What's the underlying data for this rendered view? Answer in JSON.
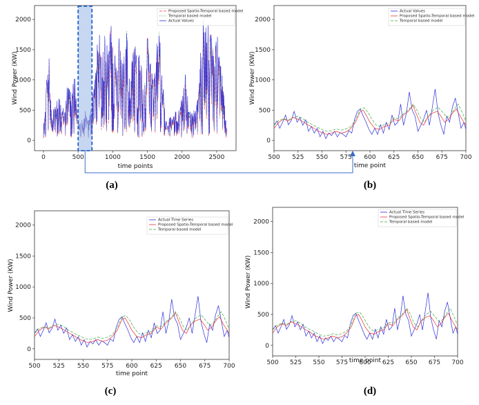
{
  "colors": {
    "actual": "#2b2bdc",
    "spatio": "#e83030",
    "temporal": "#3aa83a",
    "highlight": "#9bb7e6",
    "highlight_border": "#1f5fc8",
    "arrow": "#3a6bc9"
  },
  "chart_data": [
    {
      "id": "a",
      "type": "line",
      "panel_label": "(a)",
      "xlabel": "time points",
      "ylabel": "Wind Power (KW)",
      "xlim": [
        -130,
        2780
      ],
      "ylim": [
        -170,
        2230
      ],
      "xticks": [
        0,
        500,
        1000,
        1500,
        2000,
        2500
      ],
      "yticks": [
        0,
        500,
        1000,
        1500,
        2000
      ],
      "highlight_range": [
        500,
        700
      ],
      "legend_position": "top-right",
      "n_points": 2650,
      "series": [
        {
          "name": "Proposed Spatio-Temporal based model",
          "style": "dashed",
          "color_key": "spatio"
        },
        {
          "name": "Temporal based model",
          "style": "dotted",
          "color_key": "temporal"
        },
        {
          "name": "Actual Values",
          "style": "solid",
          "color_key": "actual"
        }
      ],
      "actual_envelope": [
        [
          0,
          200
        ],
        [
          40,
          900
        ],
        [
          80,
          1300
        ],
        [
          120,
          400
        ],
        [
          200,
          700
        ],
        [
          300,
          450
        ],
        [
          350,
          1000
        ],
        [
          400,
          700
        ],
        [
          450,
          1100
        ],
        [
          500,
          300
        ],
        [
          550,
          250
        ],
        [
          600,
          450
        ],
        [
          650,
          350
        ],
        [
          700,
          700
        ],
        [
          750,
          1100
        ],
        [
          800,
          1950
        ],
        [
          860,
          1600
        ],
        [
          920,
          1800
        ],
        [
          1000,
          1850
        ],
        [
          1050,
          1200
        ],
        [
          1100,
          1850
        ],
        [
          1150,
          1250
        ],
        [
          1200,
          1800
        ],
        [
          1250,
          900
        ],
        [
          1300,
          1700
        ],
        [
          1350,
          1450
        ],
        [
          1400,
          1650
        ],
        [
          1450,
          600
        ],
        [
          1500,
          1800
        ],
        [
          1550,
          1200
        ],
        [
          1600,
          1050
        ],
        [
          1660,
          2200
        ],
        [
          1700,
          1400
        ],
        [
          1760,
          250
        ],
        [
          1850,
          350
        ],
        [
          1950,
          450
        ],
        [
          2050,
          1100
        ],
        [
          2100,
          500
        ],
        [
          2150,
          400
        ],
        [
          2200,
          650
        ],
        [
          2250,
          1050
        ],
        [
          2300,
          2100
        ],
        [
          2350,
          1800
        ],
        [
          2400,
          1950
        ],
        [
          2450,
          1450
        ],
        [
          2500,
          1800
        ],
        [
          2560,
          1350
        ],
        [
          2600,
          800
        ],
        [
          2650,
          150
        ]
      ]
    },
    {
      "id": "b",
      "type": "line",
      "panel_label": "(b)",
      "xlabel": "time point",
      "ylabel": "Wind Power (KW)",
      "xlim": [
        500,
        700
      ],
      "ylim": [
        -170,
        2230
      ],
      "xticks": [
        500,
        525,
        550,
        575,
        600,
        625,
        650,
        675,
        700
      ],
      "yticks": [
        0,
        500,
        1000,
        1500,
        2000
      ],
      "legend_position": "top-right",
      "series": [
        {
          "name": "Actual Values",
          "style": "solid",
          "color_key": "actual"
        },
        {
          "name": "Proposed Spatio-Temporal based model",
          "style": "solid",
          "color_key": "spatio"
        },
        {
          "name": "Temporal based model",
          "style": "dashed",
          "color_key": "temporal"
        }
      ]
    },
    {
      "id": "c",
      "type": "line",
      "panel_label": "(c)",
      "xlabel": "time point",
      "ylabel": "Wind Power (KW)",
      "xlim": [
        500,
        700
      ],
      "ylim": [
        -170,
        2230
      ],
      "xticks": [
        500,
        525,
        550,
        575,
        600,
        625,
        650,
        675,
        700
      ],
      "yticks": [
        0,
        500,
        1000,
        1500,
        2000
      ],
      "legend_position": "top-right",
      "series": [
        {
          "name": "Actual Time Series",
          "style": "solid",
          "color_key": "actual"
        },
        {
          "name": "Proposed Spatio-Temporal based model",
          "style": "solid",
          "color_key": "spatio"
        },
        {
          "name": "Temporal based model",
          "style": "dashed",
          "color_key": "temporal"
        }
      ]
    },
    {
      "id": "d",
      "type": "line",
      "panel_label": "(d)",
      "xlabel": "time point",
      "ylabel": "Wind Power (KW)",
      "xlim": [
        500,
        700
      ],
      "ylim": [
        -170,
        2230
      ],
      "xticks": [
        500,
        525,
        550,
        575,
        600,
        625,
        650,
        675,
        700
      ],
      "yticks": [
        0,
        500,
        1000,
        1500,
        2000
      ],
      "legend_position": "top-right",
      "series": [
        {
          "name": "Actual Time Series",
          "style": "solid",
          "color_key": "actual"
        },
        {
          "name": "Proposed Spatio-Temporal based model",
          "style": "solid",
          "color_key": "spatio"
        },
        {
          "name": "Temporal based model",
          "style": "dashed",
          "color_key": "temporal"
        }
      ]
    }
  ],
  "zoom_series": {
    "actual": [
      [
        500,
        250
      ],
      [
        503,
        320
      ],
      [
        506,
        200
      ],
      [
        509,
        300
      ],
      [
        512,
        420
      ],
      [
        515,
        260
      ],
      [
        518,
        330
      ],
      [
        521,
        480
      ],
      [
        524,
        300
      ],
      [
        527,
        380
      ],
      [
        530,
        250
      ],
      [
        533,
        340
      ],
      [
        536,
        150
      ],
      [
        539,
        230
      ],
      [
        542,
        120
      ],
      [
        545,
        200
      ],
      [
        548,
        60
      ],
      [
        551,
        150
      ],
      [
        554,
        30
      ],
      [
        557,
        120
      ],
      [
        560,
        80
      ],
      [
        563,
        150
      ],
      [
        566,
        60
      ],
      [
        569,
        130
      ],
      [
        572,
        100
      ],
      [
        575,
        60
      ],
      [
        578,
        160
      ],
      [
        581,
        120
      ],
      [
        584,
        350
      ],
      [
        587,
        480
      ],
      [
        590,
        520
      ],
      [
        593,
        400
      ],
      [
        596,
        300
      ],
      [
        599,
        180
      ],
      [
        602,
        100
      ],
      [
        605,
        200
      ],
      [
        608,
        100
      ],
      [
        611,
        260
      ],
      [
        614,
        120
      ],
      [
        617,
        300
      ],
      [
        620,
        180
      ],
      [
        623,
        420
      ],
      [
        626,
        250
      ],
      [
        629,
        300
      ],
      [
        632,
        600
      ],
      [
        635,
        250
      ],
      [
        638,
        450
      ],
      [
        641,
        800
      ],
      [
        644,
        500
      ],
      [
        647,
        400
      ],
      [
        650,
        150
      ],
      [
        653,
        250
      ],
      [
        656,
        350
      ],
      [
        659,
        500
      ],
      [
        662,
        250
      ],
      [
        665,
        550
      ],
      [
        668,
        850
      ],
      [
        671,
        450
      ],
      [
        674,
        250
      ],
      [
        677,
        100
      ],
      [
        680,
        400
      ],
      [
        683,
        300
      ],
      [
        686,
        550
      ],
      [
        689,
        700
      ],
      [
        692,
        450
      ],
      [
        695,
        200
      ],
      [
        698,
        300
      ],
      [
        700,
        180
      ]
    ],
    "spatio": [
      [
        500,
        200
      ],
      [
        505,
        300
      ],
      [
        510,
        350
      ],
      [
        515,
        320
      ],
      [
        520,
        380
      ],
      [
        525,
        350
      ],
      [
        530,
        310
      ],
      [
        535,
        260
      ],
      [
        540,
        220
      ],
      [
        545,
        160
      ],
      [
        550,
        130
      ],
      [
        555,
        100
      ],
      [
        560,
        120
      ],
      [
        565,
        150
      ],
      [
        570,
        120
      ],
      [
        575,
        140
      ],
      [
        580,
        200
      ],
      [
        585,
        300
      ],
      [
        590,
        480
      ],
      [
        593,
        500
      ],
      [
        596,
        420
      ],
      [
        600,
        300
      ],
      [
        605,
        200
      ],
      [
        610,
        180
      ],
      [
        615,
        230
      ],
      [
        620,
        250
      ],
      [
        625,
        350
      ],
      [
        630,
        320
      ],
      [
        635,
        420
      ],
      [
        640,
        480
      ],
      [
        645,
        580
      ],
      [
        648,
        450
      ],
      [
        652,
        300
      ],
      [
        656,
        250
      ],
      [
        660,
        380
      ],
      [
        665,
        450
      ],
      [
        670,
        480
      ],
      [
        674,
        400
      ],
      [
        678,
        300
      ],
      [
        682,
        350
      ],
      [
        686,
        450
      ],
      [
        690,
        520
      ],
      [
        694,
        400
      ],
      [
        698,
        300
      ],
      [
        700,
        250
      ]
    ],
    "temporal": [
      [
        500,
        250
      ],
      [
        505,
        330
      ],
      [
        510,
        360
      ],
      [
        515,
        340
      ],
      [
        520,
        380
      ],
      [
        525,
        400
      ],
      [
        530,
        360
      ],
      [
        535,
        300
      ],
      [
        540,
        260
      ],
      [
        545,
        220
      ],
      [
        550,
        180
      ],
      [
        555,
        150
      ],
      [
        560,
        160
      ],
      [
        565,
        190
      ],
      [
        570,
        170
      ],
      [
        575,
        190
      ],
      [
        580,
        230
      ],
      [
        585,
        340
      ],
      [
        590,
        520
      ],
      [
        594,
        540
      ],
      [
        598,
        460
      ],
      [
        602,
        350
      ],
      [
        606,
        260
      ],
      [
        610,
        230
      ],
      [
        615,
        260
      ],
      [
        620,
        280
      ],
      [
        625,
        370
      ],
      [
        630,
        360
      ],
      [
        635,
        440
      ],
      [
        640,
        500
      ],
      [
        645,
        600
      ],
      [
        649,
        500
      ],
      [
        653,
        360
      ],
      [
        657,
        300
      ],
      [
        661,
        400
      ],
      [
        666,
        500
      ],
      [
        671,
        550
      ],
      [
        676,
        460
      ],
      [
        680,
        380
      ],
      [
        684,
        420
      ],
      [
        688,
        520
      ],
      [
        692,
        600
      ],
      [
        696,
        470
      ],
      [
        700,
        320
      ]
    ]
  }
}
